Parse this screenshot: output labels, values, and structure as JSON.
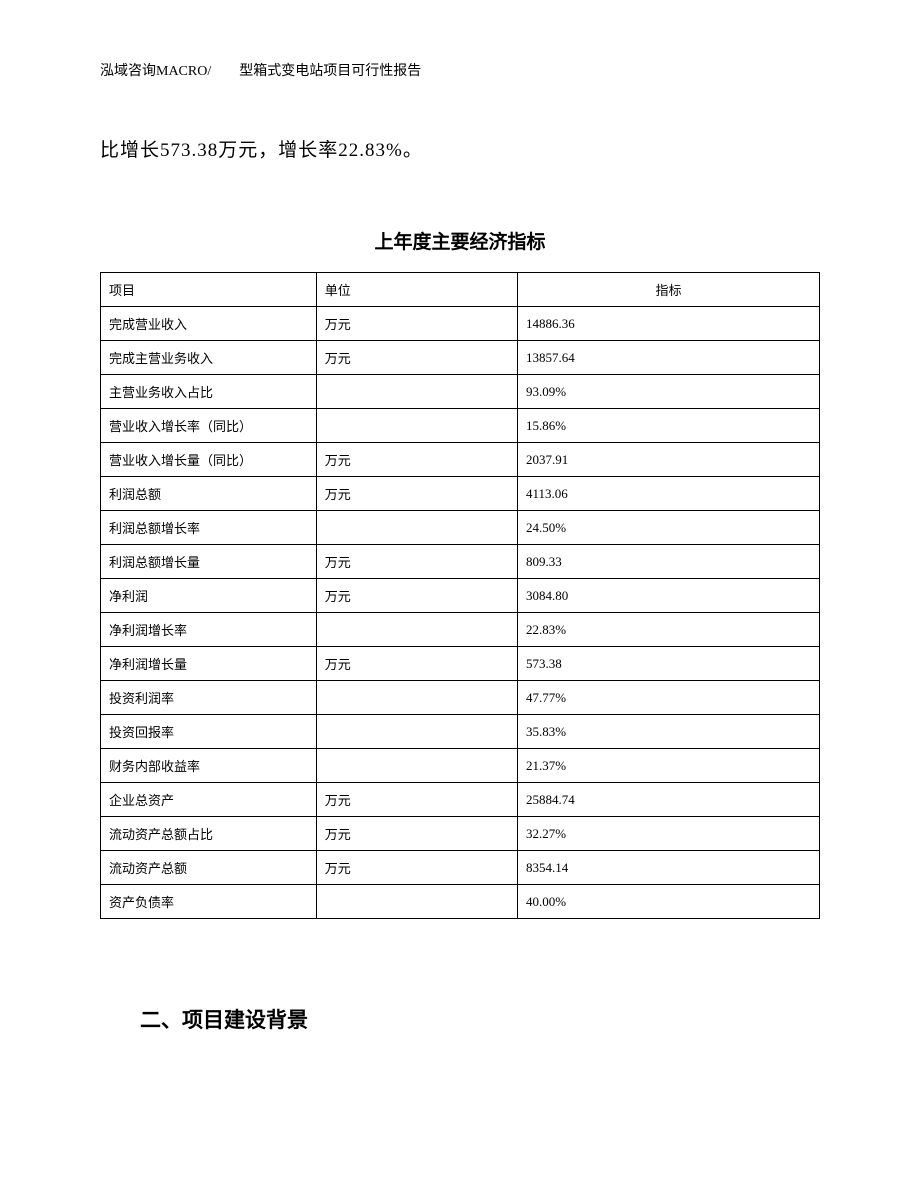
{
  "page_header": "泓域咨询MACRO/　　型箱式变电站项目可行性报告",
  "body_text": "比增长573.38万元，增长率22.83%。",
  "table": {
    "title": "上年度主要经济指标",
    "columns": [
      "项目",
      "单位",
      "指标"
    ],
    "col_widths_pct": [
      30,
      28,
      42
    ],
    "font_size": 13,
    "border_color": "#000000",
    "rows": [
      [
        "完成营业收入",
        "万元",
        "14886.36"
      ],
      [
        "完成主营业务收入",
        "万元",
        "13857.64"
      ],
      [
        "主营业务收入占比",
        "",
        "93.09%"
      ],
      [
        "营业收入增长率（同比）",
        "",
        "15.86%"
      ],
      [
        "营业收入增长量（同比）",
        "万元",
        "2037.91"
      ],
      [
        "利润总额",
        "万元",
        "4113.06"
      ],
      [
        "利润总额增长率",
        "",
        "24.50%"
      ],
      [
        "利润总额增长量",
        "万元",
        "809.33"
      ],
      [
        "净利润",
        "万元",
        "3084.80"
      ],
      [
        "净利润增长率",
        "",
        "22.83%"
      ],
      [
        "净利润增长量",
        "万元",
        "573.38"
      ],
      [
        "投资利润率",
        "",
        "47.77%"
      ],
      [
        "投资回报率",
        "",
        "35.83%"
      ],
      [
        "财务内部收益率",
        "",
        "21.37%"
      ],
      [
        "企业总资产",
        "万元",
        "25884.74"
      ],
      [
        "流动资产总额占比",
        "万元",
        "32.27%"
      ],
      [
        "流动资产总额",
        "万元",
        "8354.14"
      ],
      [
        "资产负债率",
        "",
        "40.00%"
      ]
    ]
  },
  "section_heading": "二、项目建设背景",
  "styling": {
    "page_bg": "#ffffff",
    "text_color": "#000000",
    "body_font_size": 19,
    "title_font_size": 19,
    "heading_font_size": 21,
    "header_font_size": 14,
    "body_font_family": "SimSun",
    "heading_font_family": "SimHei"
  }
}
